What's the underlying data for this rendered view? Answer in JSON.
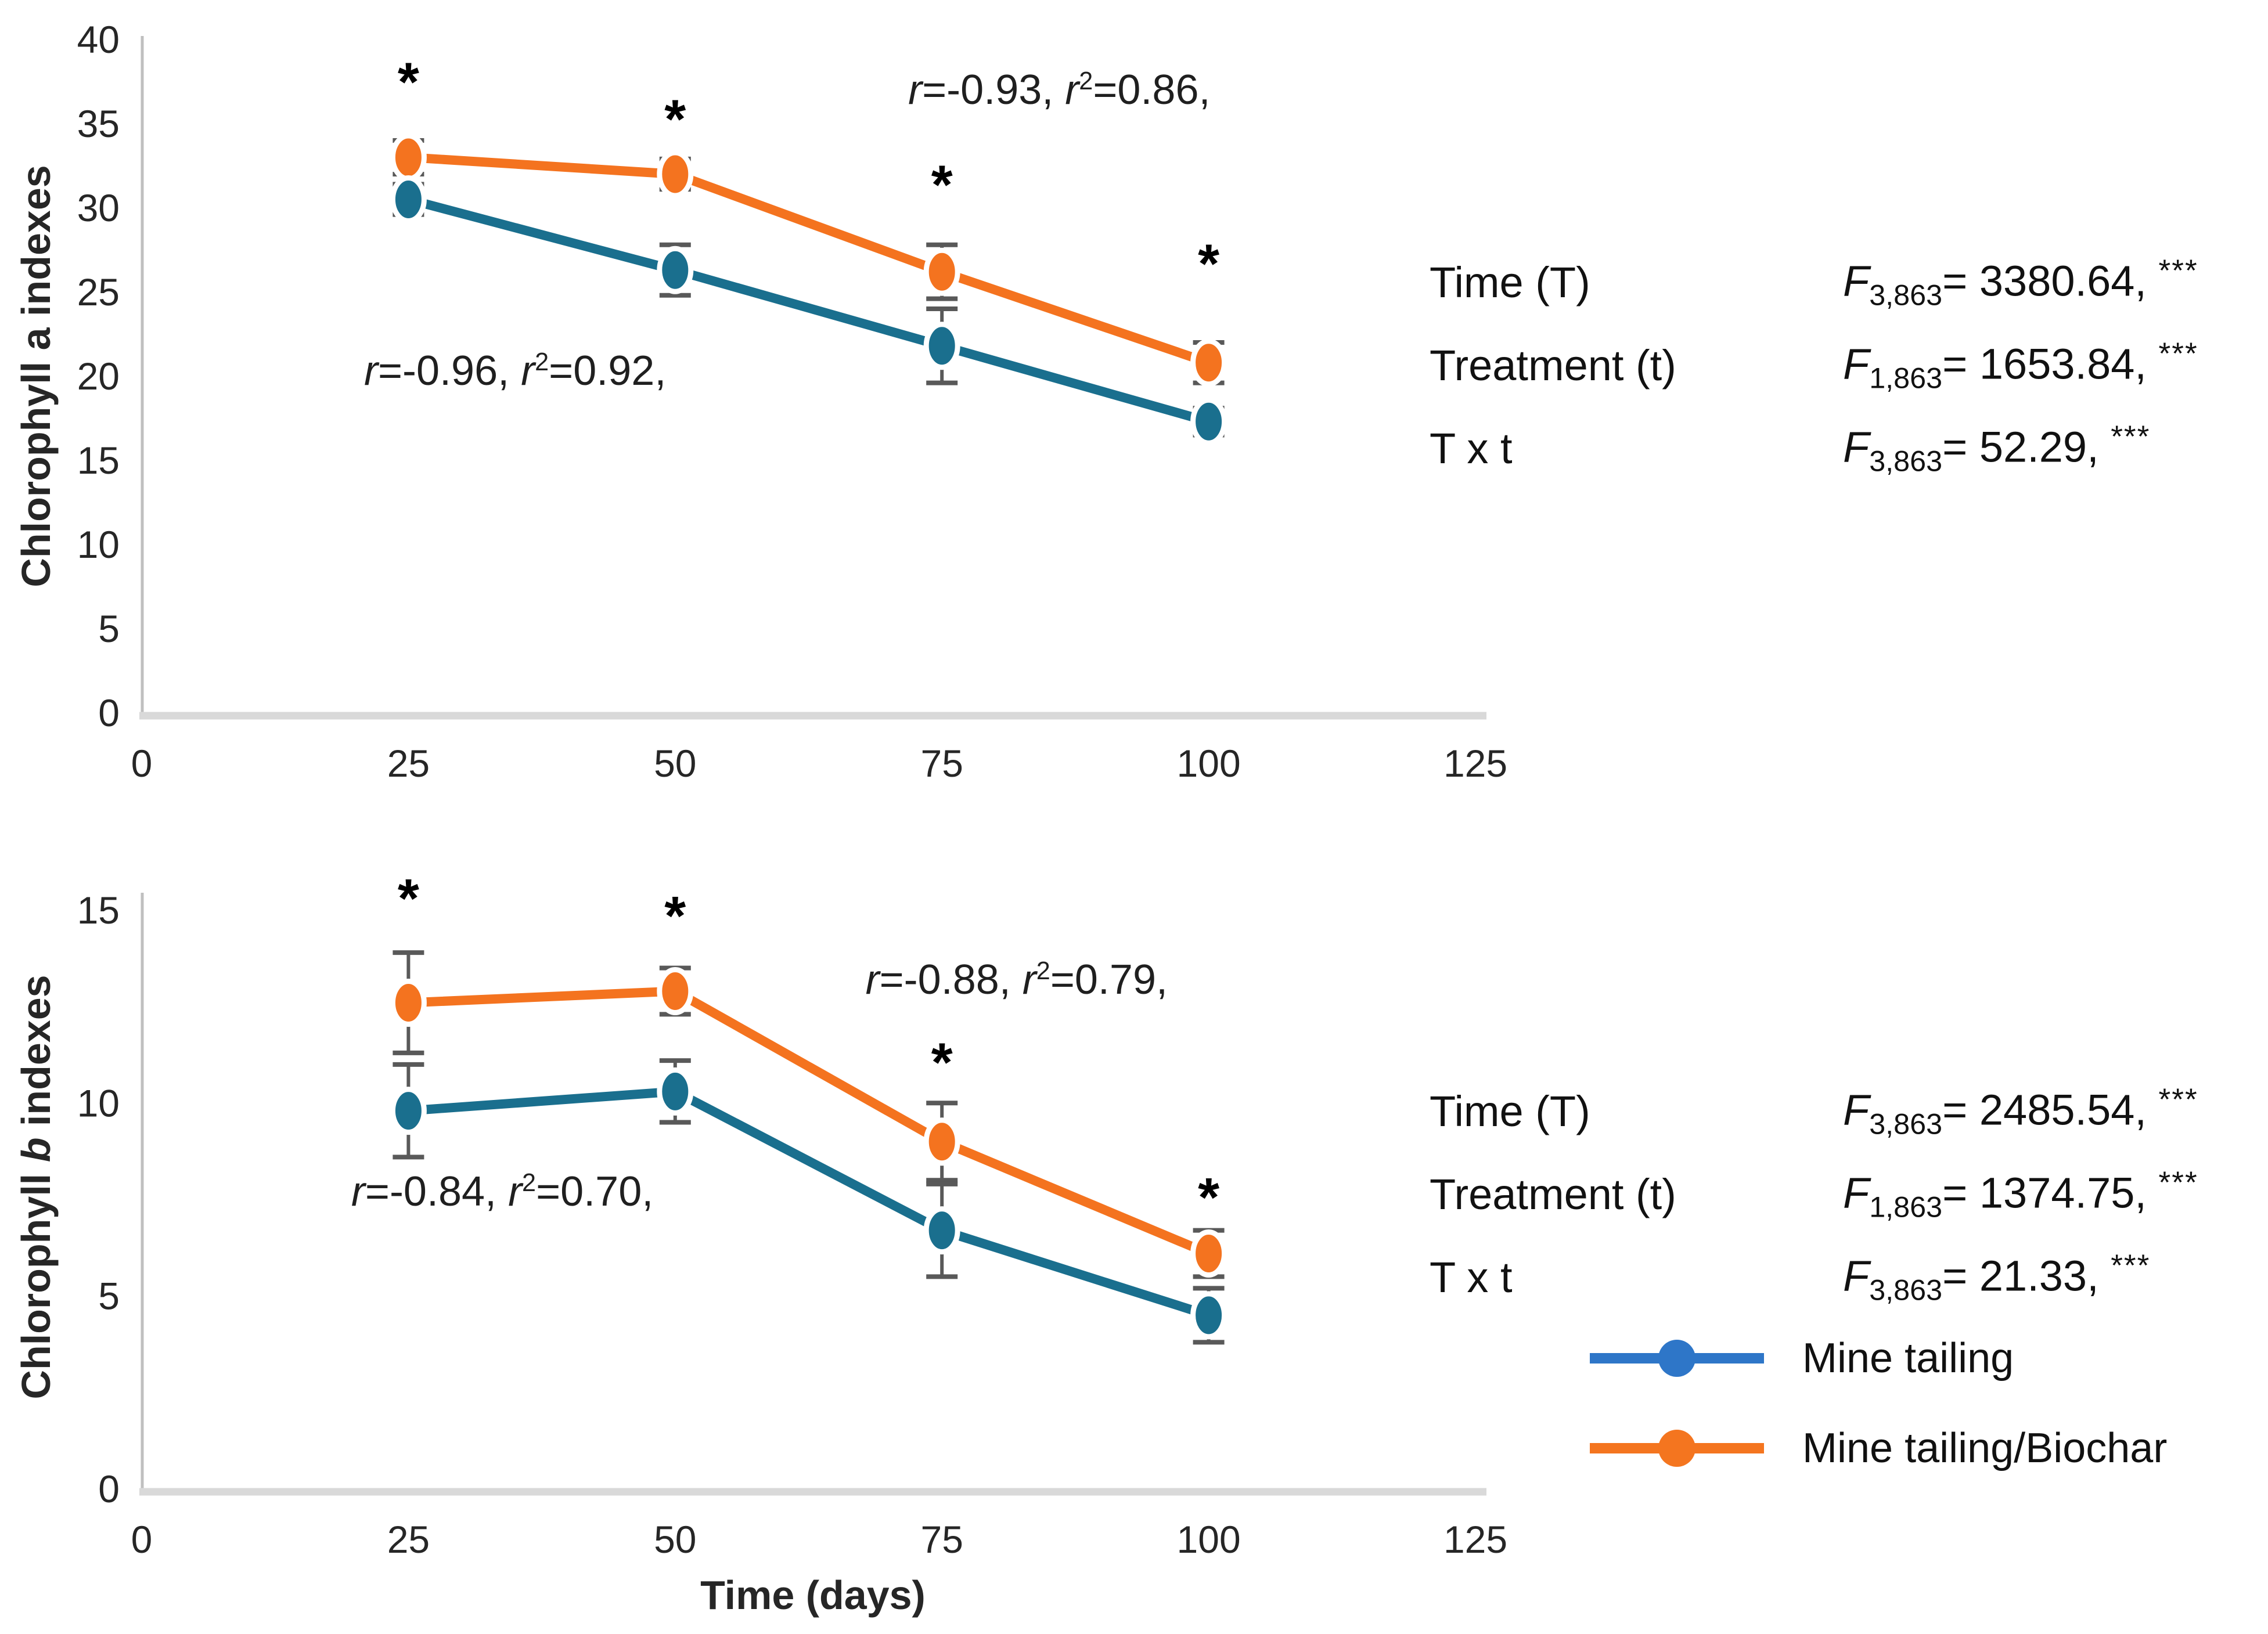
{
  "figure": {
    "background": "#ffffff",
    "significance_marker": "*",
    "colors": {
      "mine_tailing_line": "#1A6F8E",
      "biochar_line": "#F4731F",
      "legend_blue": "#2E76C8",
      "legend_orange": "#F4751F",
      "error_bar": "#595959",
      "y_axis_line": "#BFBFBF",
      "x_axis_line": "#D9D9D9",
      "tick_text": "#262626",
      "star": "#000000"
    }
  },
  "chart_data": [
    {
      "type": "line",
      "name": "chlorophyll-a",
      "ylabel_parts": {
        "pre": "Chlorophyll ",
        "em": "a",
        "post": " indexes",
        "em_italic": false
      },
      "xlabel": "",
      "x": [
        25,
        50,
        75,
        100
      ],
      "xlim": [
        0,
        125
      ],
      "ylim": [
        0,
        40
      ],
      "xticks": [
        0,
        25,
        50,
        75,
        100,
        125
      ],
      "yticks": [
        0,
        5,
        10,
        15,
        20,
        25,
        30,
        35,
        40
      ],
      "grid": false,
      "series": [
        {
          "name": "Mine tailing/Biochar",
          "color": "#F4731F",
          "values": [
            33.0,
            32.0,
            26.2,
            20.8
          ],
          "errors": [
            1.0,
            0.9,
            1.6,
            1.2
          ]
        },
        {
          "name": "Mine tailing",
          "color": "#1A6F8E",
          "values": [
            30.5,
            26.3,
            21.8,
            17.3
          ],
          "errors": [
            0.9,
            1.5,
            2.2,
            0.8
          ]
        }
      ],
      "significance": {
        "marker": "*",
        "x": [
          25,
          50,
          75,
          100
        ],
        "y": [
          38.5,
          36.3,
          32.4,
          27.7
        ]
      },
      "annotations": [
        {
          "var": "r",
          "r_value": "-0.96",
          "r2_value": "0.92",
          "x": 35,
          "y": 20.3
        },
        {
          "var": "r",
          "r_value": "-0.93",
          "r2_value": "0.86",
          "x": 86,
          "y": 37.0
        }
      ]
    },
    {
      "type": "line",
      "name": "chlorophyll-b",
      "ylabel_parts": {
        "pre": "Chlorophyll ",
        "em": "b",
        "post": " indexes",
        "em_italic": true
      },
      "xlabel": "Time (days)",
      "x": [
        25,
        50,
        75,
        100
      ],
      "xlim": [
        0,
        125
      ],
      "ylim": [
        0,
        15
      ],
      "xticks": [
        0,
        25,
        50,
        75,
        100,
        125
      ],
      "yticks": [
        0,
        5,
        10,
        15
      ],
      "grid": false,
      "series": [
        {
          "name": "Mine tailing/Biochar",
          "color": "#F4731F",
          "values": [
            12.6,
            12.9,
            9.0,
            6.1
          ],
          "errors": [
            1.3,
            0.6,
            1.0,
            0.6
          ]
        },
        {
          "name": "Mine tailing",
          "color": "#1A6F8E",
          "values": [
            9.8,
            10.3,
            6.7,
            4.5
          ],
          "errors": [
            1.2,
            0.8,
            1.2,
            0.7
          ]
        }
      ],
      "significance": {
        "marker": "*",
        "x": [
          25,
          50,
          75,
          100
        ],
        "y": [
          15.75,
          15.3,
          11.5,
          8.0
        ]
      },
      "annotations": [
        {
          "var": "r",
          "r_value": "-0.84",
          "r2_value": "0.70",
          "x": 33.8,
          "y": 7.7
        },
        {
          "var": "r",
          "r_value": "-0.88",
          "r2_value": "0.79",
          "x": 82,
          "y": 13.2
        }
      ]
    }
  ],
  "stats_blocks": [
    {
      "chart": "chlorophyll-a",
      "rows": [
        {
          "label": "Time (T)",
          "f": "F",
          "df": "3,863",
          "eq": "= 3380.64,",
          "sig": "***"
        },
        {
          "label": "Treatment (t)",
          "f": "F",
          "df": "1,863",
          "eq": "= 1653.84,",
          "sig": "***"
        },
        {
          "label": "T x t",
          "f": "F",
          "df": "3,863",
          "eq": "= 52.29,",
          "sig": "***"
        }
      ]
    },
    {
      "chart": "chlorophyll-b",
      "rows": [
        {
          "label": "Time (T)",
          "f": "F",
          "df": "3,863",
          "eq": "= 2485.54,",
          "sig": "***"
        },
        {
          "label": "Treatment (t)",
          "f": "F",
          "df": "1,863",
          "eq": "= 1374.75,",
          "sig": "***"
        },
        {
          "label": "T x t",
          "f": "F",
          "df": "3,863",
          "eq": "= 21.33,",
          "sig": "***"
        }
      ]
    }
  ],
  "legend": {
    "items": [
      {
        "label": "Mine tailing",
        "color": "#2E76C8"
      },
      {
        "label": "Mine tailing/Biochar",
        "color": "#F4751F"
      }
    ]
  }
}
